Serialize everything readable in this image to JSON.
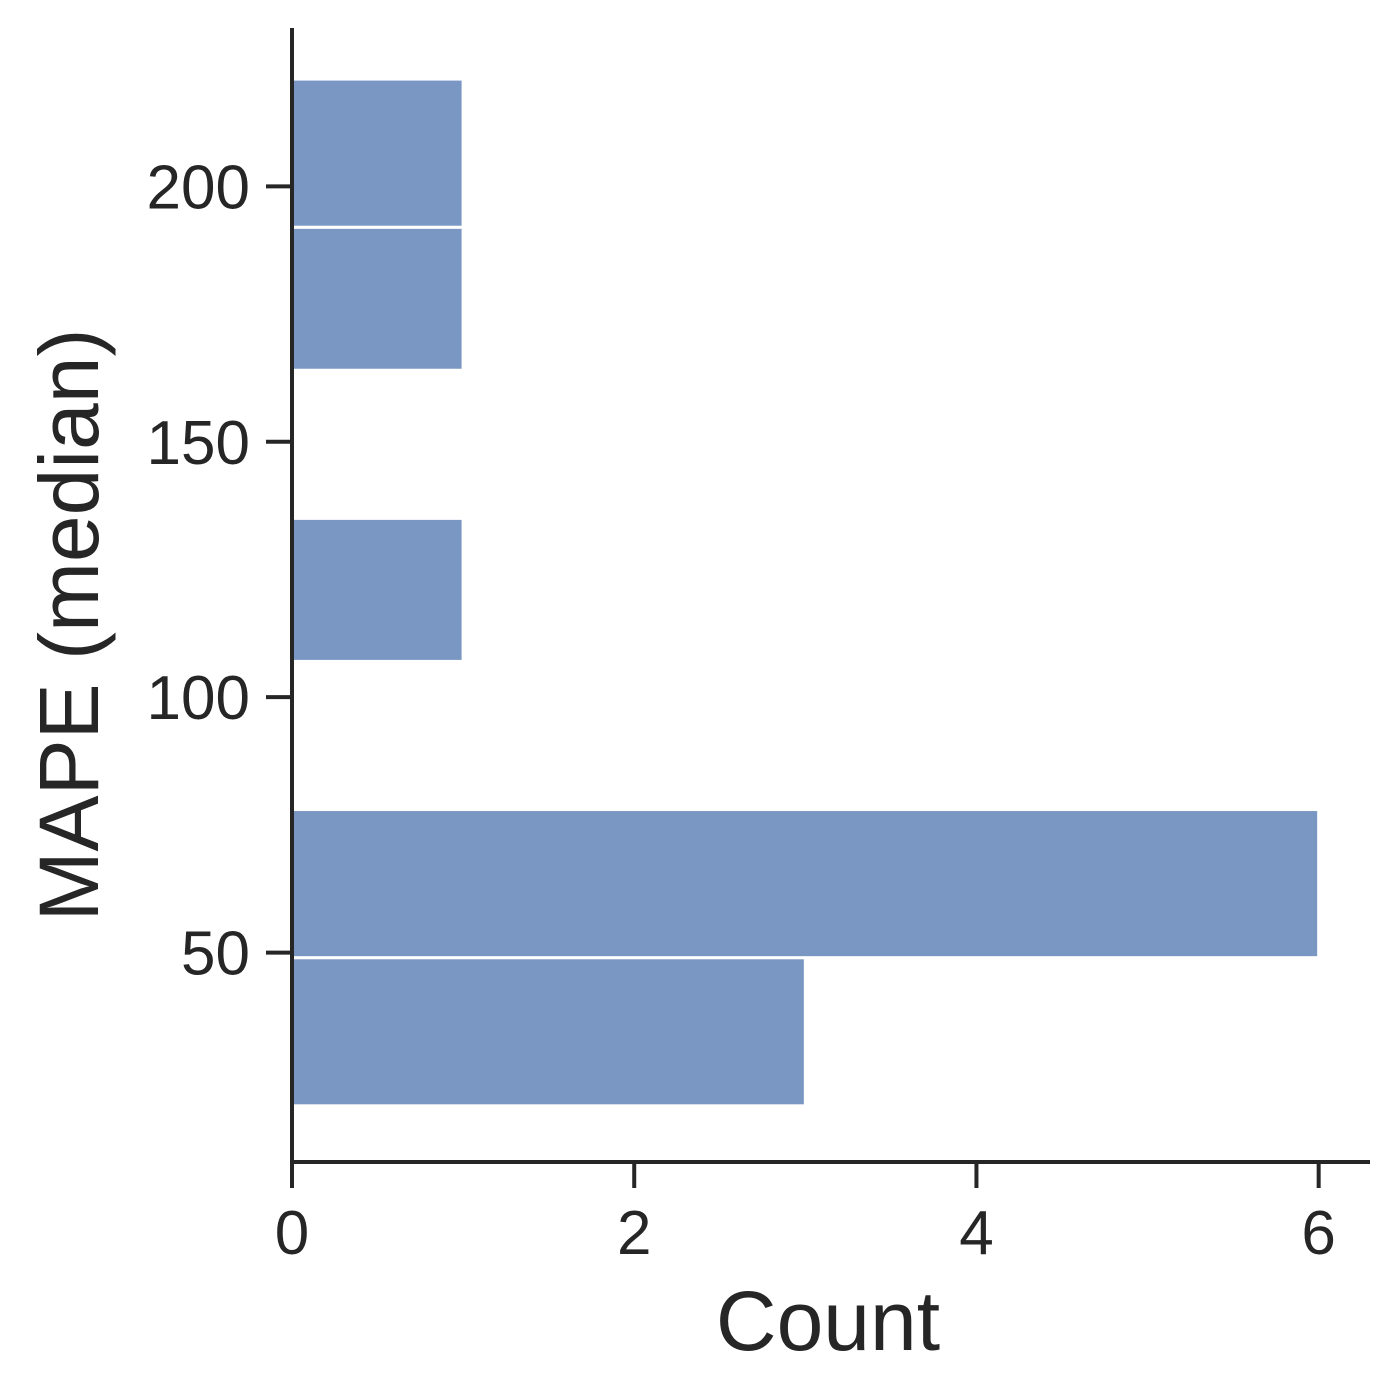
{
  "chart_data": {
    "type": "bar",
    "orientation": "horizontal",
    "xlabel": "Count",
    "ylabel": "MAPE (median)",
    "xlim": [
      0,
      6.3
    ],
    "ylim": [
      9,
      231
    ],
    "xticks": [
      0,
      2,
      4,
      6
    ],
    "yticks": [
      50,
      100,
      150,
      200
    ],
    "bins": [
      {
        "y_start": 20,
        "y_end": 49,
        "count": 3
      },
      {
        "y_start": 49,
        "y_end": 78,
        "count": 6
      },
      {
        "y_start": 78,
        "y_end": 107,
        "count": 0
      },
      {
        "y_start": 107,
        "y_end": 135,
        "count": 1
      },
      {
        "y_start": 135,
        "y_end": 164,
        "count": 0
      },
      {
        "y_start": 164,
        "y_end": 192,
        "count": 1
      },
      {
        "y_start": 192,
        "y_end": 221,
        "count": 1
      }
    ],
    "color": "#7a97c4",
    "grid": false,
    "spines": [
      "left",
      "bottom"
    ]
  }
}
